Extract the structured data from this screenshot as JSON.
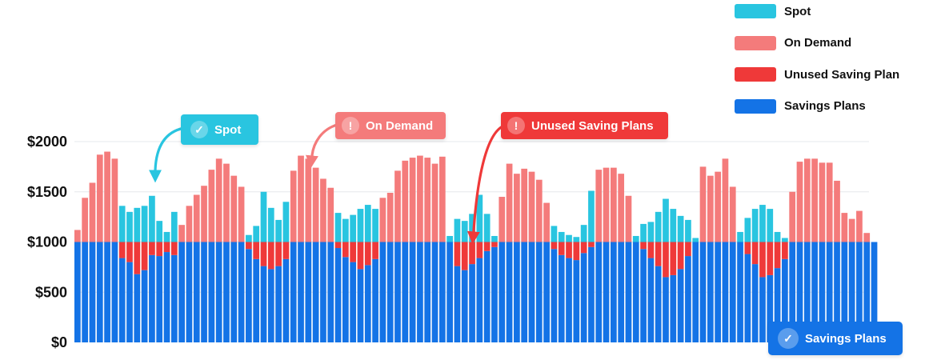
{
  "chart_data": {
    "type": "bar",
    "stacked": true,
    "baseline": 1000,
    "ylim": [
      0,
      2000
    ],
    "yticks": [
      {
        "value": 0,
        "label": "$0"
      },
      {
        "value": 500,
        "label": "$500"
      },
      {
        "value": 1000,
        "label": "$1000"
      },
      {
        "value": 1500,
        "label": "$1500"
      },
      {
        "value": 2000,
        "label": "$2000"
      }
    ],
    "grid": true,
    "legend_position": "top-right",
    "series": [
      {
        "name": "Spot",
        "color": "#29c5e0"
      },
      {
        "name": "On Demand",
        "color": "#f47b7b"
      },
      {
        "name": "Unused Saving Plan",
        "color": "#ef3939"
      },
      {
        "name": "Savings Plans",
        "color": "#1473e6"
      }
    ],
    "values": [
      {
        "savings_plans": 1000,
        "on_demand": 120
      },
      {
        "savings_plans": 1000,
        "on_demand": 440
      },
      {
        "savings_plans": 1000,
        "on_demand": 590
      },
      {
        "savings_plans": 1000,
        "on_demand": 870
      },
      {
        "savings_plans": 1000,
        "on_demand": 900
      },
      {
        "savings_plans": 1000,
        "on_demand": 830
      },
      {
        "savings_plans": 840,
        "unused": 160,
        "spot": 360
      },
      {
        "savings_plans": 800,
        "unused": 200,
        "spot": 300
      },
      {
        "savings_plans": 680,
        "unused": 320,
        "spot": 340
      },
      {
        "savings_plans": 720,
        "unused": 280,
        "spot": 360
      },
      {
        "savings_plans": 870,
        "unused": 130,
        "spot": 460
      },
      {
        "savings_plans": 860,
        "unused": 140,
        "spot": 210
      },
      {
        "savings_plans": 900,
        "unused": 100,
        "spot": 100
      },
      {
        "savings_plans": 870,
        "unused": 130,
        "spot": 300
      },
      {
        "savings_plans": 1000,
        "on_demand": 170
      },
      {
        "savings_plans": 1000,
        "on_demand": 360
      },
      {
        "savings_plans": 1000,
        "on_demand": 470
      },
      {
        "savings_plans": 1000,
        "on_demand": 560
      },
      {
        "savings_plans": 1000,
        "on_demand": 720
      },
      {
        "savings_plans": 1000,
        "on_demand": 830
      },
      {
        "savings_plans": 1000,
        "on_demand": 780
      },
      {
        "savings_plans": 1000,
        "on_demand": 660
      },
      {
        "savings_plans": 1000,
        "on_demand": 550
      },
      {
        "savings_plans": 930,
        "unused": 70,
        "spot": 70
      },
      {
        "savings_plans": 830,
        "unused": 170,
        "spot": 160
      },
      {
        "savings_plans": 760,
        "unused": 240,
        "spot": 500
      },
      {
        "savings_plans": 730,
        "unused": 270,
        "spot": 340
      },
      {
        "savings_plans": 760,
        "unused": 240,
        "spot": 220
      },
      {
        "savings_plans": 830,
        "unused": 170,
        "spot": 400
      },
      {
        "savings_plans": 1000,
        "on_demand": 710
      },
      {
        "savings_plans": 1000,
        "on_demand": 860
      },
      {
        "savings_plans": 1000,
        "on_demand": 830
      },
      {
        "savings_plans": 1000,
        "on_demand": 740
      },
      {
        "savings_plans": 1000,
        "on_demand": 630
      },
      {
        "savings_plans": 1000,
        "on_demand": 540
      },
      {
        "savings_plans": 940,
        "unused": 60,
        "spot": 290
      },
      {
        "savings_plans": 850,
        "unused": 150,
        "spot": 230
      },
      {
        "savings_plans": 800,
        "unused": 200,
        "spot": 270
      },
      {
        "savings_plans": 730,
        "unused": 270,
        "spot": 330
      },
      {
        "savings_plans": 770,
        "unused": 230,
        "spot": 370
      },
      {
        "savings_plans": 830,
        "unused": 170,
        "spot": 330
      },
      {
        "savings_plans": 1000,
        "on_demand": 440
      },
      {
        "savings_plans": 1000,
        "on_demand": 490
      },
      {
        "savings_plans": 1000,
        "on_demand": 710
      },
      {
        "savings_plans": 1000,
        "on_demand": 810
      },
      {
        "savings_plans": 1000,
        "on_demand": 840
      },
      {
        "savings_plans": 1000,
        "on_demand": 860
      },
      {
        "savings_plans": 1000,
        "on_demand": 840
      },
      {
        "savings_plans": 1000,
        "on_demand": 780
      },
      {
        "savings_plans": 1000,
        "on_demand": 850
      },
      {
        "savings_plans": 1000,
        "spot": 60
      },
      {
        "savings_plans": 760,
        "unused": 240,
        "spot": 230
      },
      {
        "savings_plans": 720,
        "unused": 280,
        "spot": 210
      },
      {
        "savings_plans": 780,
        "unused": 220,
        "spot": 280
      },
      {
        "savings_plans": 840,
        "unused": 160,
        "spot": 470
      },
      {
        "savings_plans": 910,
        "unused": 90,
        "spot": 280
      },
      {
        "savings_plans": 950,
        "unused": 50,
        "spot": 60
      },
      {
        "savings_plans": 1000,
        "on_demand": 450
      },
      {
        "savings_plans": 1000,
        "on_demand": 780
      },
      {
        "savings_plans": 1000,
        "on_demand": 680
      },
      {
        "savings_plans": 1000,
        "on_demand": 730
      },
      {
        "savings_plans": 1000,
        "on_demand": 700
      },
      {
        "savings_plans": 1000,
        "on_demand": 620
      },
      {
        "savings_plans": 1000,
        "on_demand": 390
      },
      {
        "savings_plans": 930,
        "unused": 70,
        "spot": 160
      },
      {
        "savings_plans": 870,
        "unused": 130,
        "spot": 100
      },
      {
        "savings_plans": 840,
        "unused": 160,
        "spot": 70
      },
      {
        "savings_plans": 820,
        "unused": 180,
        "spot": 50
      },
      {
        "savings_plans": 890,
        "unused": 110,
        "spot": 170
      },
      {
        "savings_plans": 950,
        "unused": 50,
        "spot": 510
      },
      {
        "savings_plans": 1000,
        "on_demand": 720
      },
      {
        "savings_plans": 1000,
        "on_demand": 740
      },
      {
        "savings_plans": 1000,
        "on_demand": 740
      },
      {
        "savings_plans": 1000,
        "on_demand": 680
      },
      {
        "savings_plans": 1000,
        "on_demand": 460
      },
      {
        "savings_plans": 1000,
        "spot": 60
      },
      {
        "savings_plans": 930,
        "unused": 70,
        "spot": 180
      },
      {
        "savings_plans": 840,
        "unused": 160,
        "spot": 200
      },
      {
        "savings_plans": 760,
        "unused": 240,
        "spot": 300
      },
      {
        "savings_plans": 650,
        "unused": 350,
        "spot": 430
      },
      {
        "savings_plans": 670,
        "unused": 330,
        "spot": 330
      },
      {
        "savings_plans": 730,
        "unused": 270,
        "spot": 260
      },
      {
        "savings_plans": 860,
        "unused": 140,
        "spot": 220
      },
      {
        "savings_plans": 1000,
        "spot": 40
      },
      {
        "savings_plans": 1000,
        "on_demand": 750
      },
      {
        "savings_plans": 1000,
        "on_demand": 660
      },
      {
        "savings_plans": 1000,
        "on_demand": 700
      },
      {
        "savings_plans": 1000,
        "on_demand": 830
      },
      {
        "savings_plans": 1000,
        "on_demand": 550
      },
      {
        "savings_plans": 1000,
        "spot": 100
      },
      {
        "savings_plans": 880,
        "unused": 120,
        "spot": 240
      },
      {
        "savings_plans": 780,
        "unused": 220,
        "spot": 330
      },
      {
        "savings_plans": 650,
        "unused": 350,
        "spot": 370
      },
      {
        "savings_plans": 670,
        "unused": 330,
        "spot": 330
      },
      {
        "savings_plans": 740,
        "unused": 260,
        "spot": 100
      },
      {
        "savings_plans": 830,
        "unused": 170,
        "spot": 40
      },
      {
        "savings_plans": 1000,
        "on_demand": 500
      },
      {
        "savings_plans": 1000,
        "on_demand": 800
      },
      {
        "savings_plans": 1000,
        "on_demand": 830
      },
      {
        "savings_plans": 1000,
        "on_demand": 830
      },
      {
        "savings_plans": 1000,
        "on_demand": 790
      },
      {
        "savings_plans": 1000,
        "on_demand": 790
      },
      {
        "savings_plans": 1000,
        "on_demand": 610
      },
      {
        "savings_plans": 1000,
        "on_demand": 290
      },
      {
        "savings_plans": 1000,
        "on_demand": 230
      },
      {
        "savings_plans": 1000,
        "on_demand": 310
      },
      {
        "savings_plans": 1000,
        "on_demand": 90
      },
      {
        "savings_plans": 1000
      }
    ],
    "annotations": [
      {
        "text": "Spot",
        "icon": "check-icon",
        "color": "#29c5e0"
      },
      {
        "text": "On Demand",
        "icon": "exclamation-icon",
        "color": "#f47b7b"
      },
      {
        "text": "Unused Saving Plans",
        "icon": "exclamation-icon",
        "color": "#ef3939"
      },
      {
        "text": "Savings Plans",
        "icon": "check-icon",
        "color": "#1473e6"
      }
    ]
  }
}
